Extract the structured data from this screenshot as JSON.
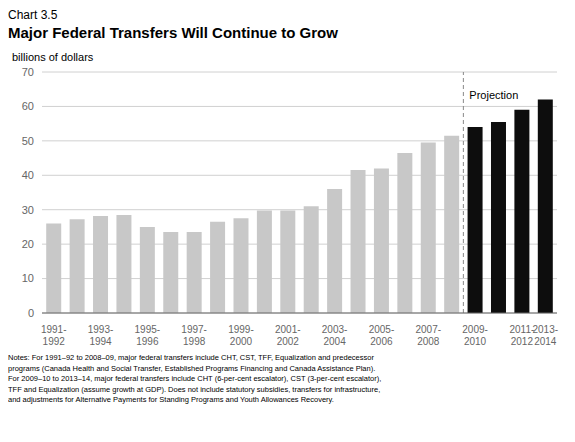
{
  "chart_data": {
    "type": "bar",
    "title": "Chart 3.5",
    "subtitle": "Major Federal Transfers Will Continue to Grow",
    "ylabel": "billions of dollars",
    "categories": [
      "1991-\n1992",
      null,
      "1993-\n1994",
      null,
      "1995-\n1996",
      null,
      "1997-\n1998",
      null,
      "1999-\n2000",
      null,
      "2001-\n2002",
      null,
      "2003-\n2004",
      null,
      "2005-\n2006",
      null,
      "2007-\n2008",
      null,
      "2009-\n2010",
      null,
      "2011-\n2012",
      "2013-\n2014"
    ],
    "values": [
      26.0,
      27.2,
      28.2,
      28.5,
      25.0,
      23.5,
      23.5,
      26.5,
      27.5,
      29.8,
      29.8,
      31.0,
      36.0,
      41.5,
      42.0,
      46.5,
      49.5,
      51.5,
      54.0,
      55.5,
      59.0,
      62.0
    ],
    "colors": [
      "#c8c8c8",
      "#c8c8c8",
      "#c8c8c8",
      "#c8c8c8",
      "#c8c8c8",
      "#c8c8c8",
      "#c8c8c8",
      "#c8c8c8",
      "#c8c8c8",
      "#c8c8c8",
      "#c8c8c8",
      "#c8c8c8",
      "#c8c8c8",
      "#c8c8c8",
      "#c8c8c8",
      "#c8c8c8",
      "#c8c8c8",
      "#c8c8c8",
      "#0d0d0d",
      "#0d0d0d",
      "#0d0d0d",
      "#0d0d0d"
    ],
    "ylim": [
      0,
      70
    ],
    "yticks": [
      0,
      10,
      20,
      30,
      40,
      50,
      60,
      70
    ],
    "grid": true,
    "annotations": [
      {
        "text": "Projection",
        "x": 18,
        "y": 64.5,
        "color": "#888888",
        "line_style": "dashed"
      }
    ],
    "notes": "Notes: For 1991–92 to 2008–09, major federal transfers include CHT, CST, TFF, Equalization and predecessor\nprograms (Canada Health and Social Transfer, Established Programs Financing and Canada Assistance Plan).\nFor 2009–10 to 2013–14, major federal transfers include CHT (6-per-cent escalator), CST (3-per-cent escalator),\nTFF and Equalization (assume growth at GDP). Does not include statutory subsidies, transfers for infrastructure,\nand adjustments for Alternative Payments for Standing Programs and Youth Allowances Recovery."
  }
}
